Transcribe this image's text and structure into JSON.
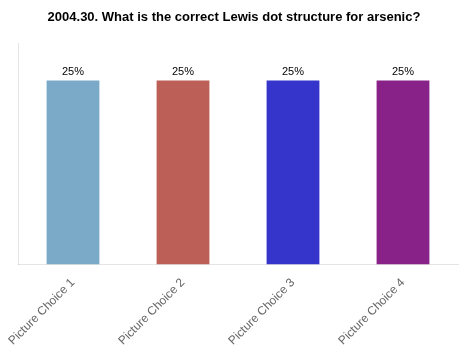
{
  "chart_data": {
    "type": "bar",
    "title": "2004.30. What is the correct Lewis dot structure for arsenic?",
    "categories": [
      "Picture Choice 1",
      "Picture Choice 2",
      "Picture Choice 3",
      "Picture Choice 4"
    ],
    "values": [
      25,
      25,
      25,
      25
    ],
    "value_labels": [
      "25%",
      "25%",
      "25%",
      "25%"
    ],
    "colors": [
      "#7baac8",
      "#bb5f57",
      "#3535cc",
      "#882288"
    ],
    "ylim": [
      0,
      30
    ],
    "data_labels": true,
    "tick_labels": "x",
    "grid": false
  }
}
